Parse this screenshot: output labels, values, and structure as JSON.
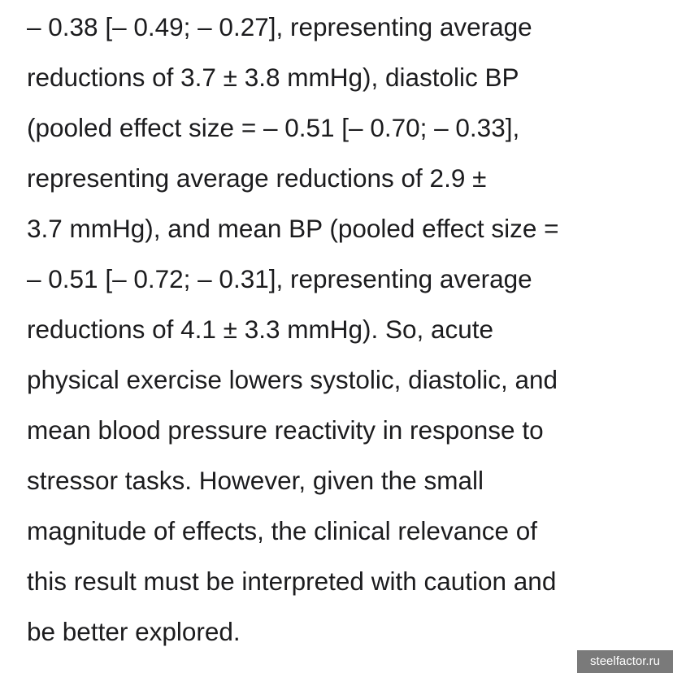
{
  "article": {
    "lines": [
      "– 0.38 [– 0.49; – 0.27], representing average",
      "reductions of 3.7 ± 3.8 mmHg), diastolic BP",
      "(pooled effect size = – 0.51 [– 0.70; – 0.33],",
      "representing average reductions of 2.9 ±",
      "3.7 mmHg), and mean BP (pooled effect size =",
      "– 0.51 [– 0.72; – 0.31], representing average",
      "reductions of 4.1 ± 3.3 mmHg). So, acute",
      "physical exercise lowers systolic, diastolic, and",
      "mean blood pressure reactivity in response to",
      "stressor tasks. However, given the small",
      "magnitude of effects, the clinical relevance of",
      "this result must be interpreted with caution and",
      "be better explored."
    ]
  },
  "watermark": {
    "text": "steelfactor.ru",
    "background": "#7a7a7a"
  },
  "colors": {
    "text": "#1c1c1e",
    "background": "#ffffff"
  }
}
